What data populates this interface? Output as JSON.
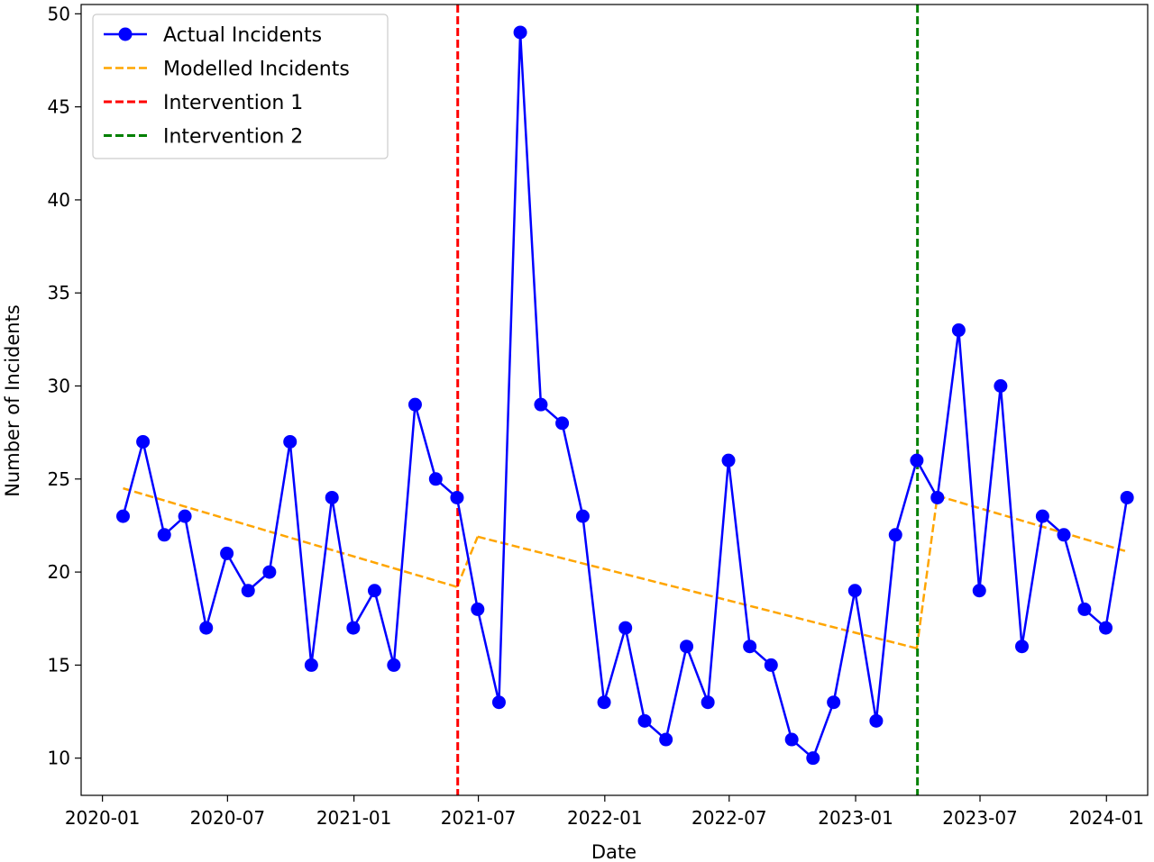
{
  "chart_data": {
    "type": "line",
    "title": "",
    "xlabel": "Date",
    "ylabel": "Number of Incidents",
    "xlim": [
      "2019-12-01",
      "2024-03-01"
    ],
    "ylim": [
      8,
      50.5
    ],
    "grid": false,
    "legend_position": "top-left",
    "x_ticks": [
      "2020-01",
      "2020-07",
      "2021-01",
      "2021-07",
      "2022-01",
      "2022-07",
      "2023-01",
      "2023-07",
      "2024-01"
    ],
    "y_ticks": [
      10,
      15,
      20,
      25,
      30,
      35,
      40,
      45,
      50
    ],
    "series": [
      {
        "name": "Actual Incidents",
        "style": "solid-markers",
        "color": "#0000ff",
        "x": [
          "2020-01-31",
          "2020-02-29",
          "2020-03-31",
          "2020-04-30",
          "2020-05-31",
          "2020-06-30",
          "2020-07-31",
          "2020-08-31",
          "2020-09-30",
          "2020-10-31",
          "2020-11-30",
          "2020-12-31",
          "2021-01-31",
          "2021-02-28",
          "2021-03-31",
          "2021-04-30",
          "2021-05-31",
          "2021-06-30",
          "2021-07-31",
          "2021-08-31",
          "2021-09-30",
          "2021-10-31",
          "2021-11-30",
          "2021-12-31",
          "2022-01-31",
          "2022-02-28",
          "2022-03-31",
          "2022-04-30",
          "2022-05-31",
          "2022-06-30",
          "2022-07-31",
          "2022-08-31",
          "2022-09-30",
          "2022-10-31",
          "2022-11-30",
          "2022-12-31",
          "2023-01-31",
          "2023-02-28",
          "2023-03-31",
          "2023-04-30",
          "2023-05-31",
          "2023-06-30",
          "2023-07-31",
          "2023-08-31",
          "2023-09-30",
          "2023-10-31",
          "2023-11-30",
          "2023-12-31",
          "2024-01-31"
        ],
        "values": [
          23,
          27,
          22,
          23,
          17,
          21,
          19,
          20,
          27,
          15,
          24,
          17,
          19,
          15,
          29,
          25,
          24,
          18,
          13,
          49,
          29,
          28,
          23,
          13,
          17,
          12,
          11,
          16,
          13,
          26,
          16,
          15,
          11,
          10,
          13,
          19,
          12,
          22,
          26,
          24,
          33,
          19,
          30,
          16,
          23,
          22,
          18,
          17,
          24
        ]
      },
      {
        "name": "Modelled Incidents",
        "style": "dashed",
        "color": "#ffa500",
        "segments": [
          {
            "x": [
              "2020-01-31",
              "2021-05-31"
            ],
            "values": [
              24.5,
              19.2
            ]
          },
          {
            "x": [
              "2021-05-31",
              "2021-06-30"
            ],
            "values": [
              19.2,
              21.9
            ]
          },
          {
            "x": [
              "2021-06-30",
              "2023-03-31"
            ],
            "values": [
              21.9,
              15.9
            ]
          },
          {
            "x": [
              "2023-03-31",
              "2023-04-30"
            ],
            "values": [
              15.9,
              24.1
            ]
          },
          {
            "x": [
              "2023-04-30",
              "2024-01-31"
            ],
            "values": [
              24.1,
              21.1
            ]
          }
        ]
      },
      {
        "name": "Intervention 1",
        "style": "vline-dashed",
        "color": "#ff0000",
        "x": "2021-06-01"
      },
      {
        "name": "Intervention 2",
        "style": "vline-dashed",
        "color": "#008000",
        "x": "2023-04-01"
      }
    ]
  }
}
